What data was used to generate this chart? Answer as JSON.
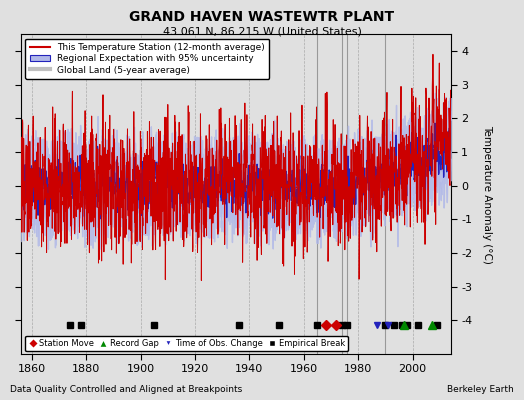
{
  "title": "GRAND HAVEN WASTEWTR PLANT",
  "subtitle": "43.061 N, 86.215 W (United States)",
  "ylabel": "Temperature Anomaly (°C)",
  "xlabel_note": "Data Quality Controlled and Aligned at Breakpoints",
  "credit": "Berkeley Earth",
  "year_start": 1855,
  "year_end": 2014,
  "ylim": [
    -5,
    4.5
  ],
  "yticks": [
    -4,
    -3,
    -2,
    -1,
    0,
    1,
    2,
    3,
    4
  ],
  "xticks": [
    1860,
    1880,
    1900,
    1920,
    1940,
    1960,
    1980,
    2000
  ],
  "bg_color": "#e0e0e0",
  "plot_bg_color": "#e0e0e0",
  "station_color": "#cc0000",
  "regional_color": "#2222bb",
  "regional_fill_color": "#b0b8e8",
  "global_color": "#c0c0c0",
  "legend_entries": [
    "This Temperature Station (12-month average)",
    "Regional Expectation with 95% uncertainty",
    "Global Land (5-year average)"
  ],
  "marker_legend": [
    {
      "label": "Station Move",
      "color": "#cc0000",
      "marker": "D"
    },
    {
      "label": "Record Gap",
      "color": "#008800",
      "marker": "^"
    },
    {
      "label": "Time of Obs. Change",
      "color": "#2222bb",
      "marker": "v"
    },
    {
      "label": "Empirical Break",
      "color": "#000000",
      "marker": "s"
    }
  ],
  "station_moves": [
    1968,
    1972
  ],
  "record_gaps": [
    1997,
    2007
  ],
  "obs_changes": [
    1987,
    1991
  ],
  "emp_breaks": [
    1874,
    1878,
    1905,
    1936,
    1951,
    1965,
    1974,
    1976,
    1990,
    1993,
    1996,
    1998,
    2002,
    2009
  ],
  "vertical_lines": [
    1965,
    1974,
    1976,
    1990
  ]
}
